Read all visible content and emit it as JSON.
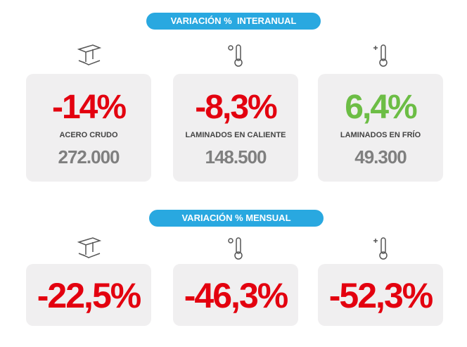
{
  "sections": [
    {
      "title": "VARIACIÓN %  INTERANUAL",
      "cards": [
        {
          "value": "-14%",
          "label": "ACERO CRUDO",
          "amount": "272.000"
        },
        {
          "value": "-8,3%",
          "label": "LAMINADOS EN CALIENTE",
          "amount": "148.500"
        },
        {
          "value": "6,4%",
          "label": "LAMINADOS EN FRÍO",
          "amount": "49.300"
        }
      ]
    },
    {
      "title": "VARIACIÓN % MENSUAL",
      "cards": [
        {
          "value": "-22,5%"
        },
        {
          "value": "-46,3%"
        },
        {
          "value": "-52,3%"
        }
      ]
    }
  ]
}
